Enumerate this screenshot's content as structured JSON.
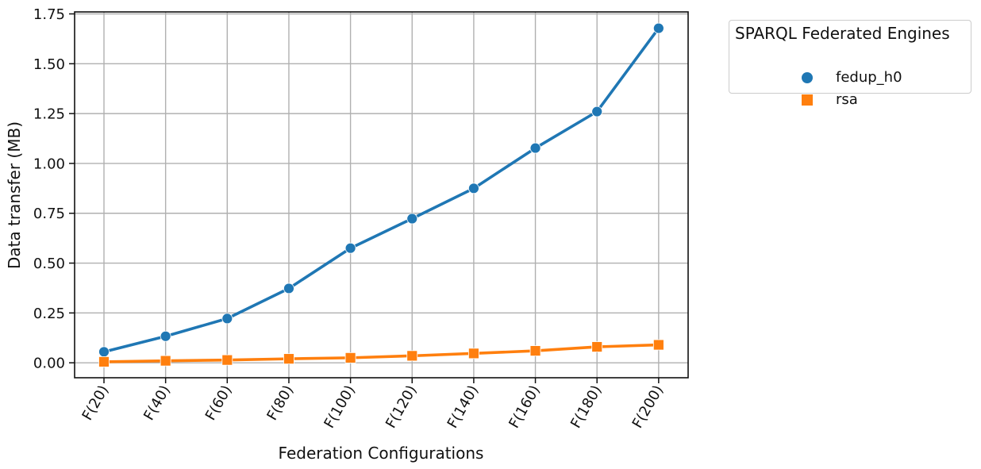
{
  "chart_data": {
    "type": "line",
    "xlabel": "Federation Configurations",
    "ylabel": "Data transfer (MB)",
    "categories": [
      "F(20)",
      "F(40)",
      "F(60)",
      "F(80)",
      "F(100)",
      "F(120)",
      "F(140)",
      "F(160)",
      "F(180)",
      "F(200)"
    ],
    "y_ticks": [
      "0.00",
      "0.25",
      "0.50",
      "0.75",
      "1.00",
      "1.25",
      "1.50",
      "1.75"
    ],
    "ylim": [
      -0.075,
      1.76
    ],
    "grid": true,
    "series": [
      {
        "name": "fedup_h0",
        "color": "#1f77b4",
        "marker": "circle",
        "values": [
          0.055,
          0.133,
          0.222,
          0.373,
          0.575,
          0.723,
          0.875,
          1.077,
          1.26,
          1.678
        ]
      },
      {
        "name": "rsa",
        "color": "#ff7f0e",
        "marker": "square",
        "values": [
          0.005,
          0.01,
          0.014,
          0.02,
          0.025,
          0.035,
          0.047,
          0.06,
          0.08,
          0.09
        ]
      }
    ],
    "legend": {
      "title": "SPARQL Federated Engines",
      "placement": "outside-top-right"
    }
  }
}
